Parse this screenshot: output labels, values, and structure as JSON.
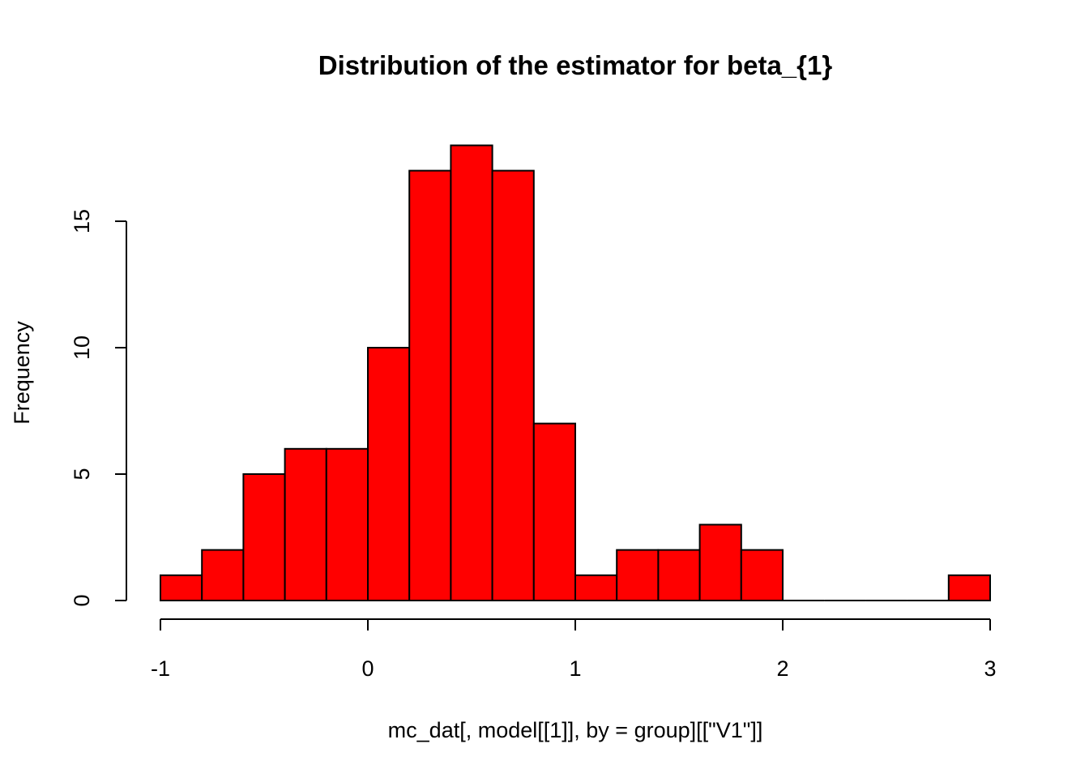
{
  "chart_data": {
    "type": "bar",
    "subtype": "histogram",
    "title": "Distribution of the estimator for beta_{1}",
    "xlabel": "mc_dat[, model[[1]], by = group][[\"V1\"]]",
    "ylabel": "Frequency",
    "bar_color": "#ff0000",
    "bin_width": 0.2,
    "bins": [
      {
        "start": -1.0,
        "end": -0.8,
        "count": 1
      },
      {
        "start": -0.8,
        "end": -0.6,
        "count": 2
      },
      {
        "start": -0.6,
        "end": -0.4,
        "count": 5
      },
      {
        "start": -0.4,
        "end": -0.2,
        "count": 6
      },
      {
        "start": -0.2,
        "end": 0.0,
        "count": 6
      },
      {
        "start": 0.0,
        "end": 0.2,
        "count": 10
      },
      {
        "start": 0.2,
        "end": 0.4,
        "count": 17
      },
      {
        "start": 0.4,
        "end": 0.6,
        "count": 18
      },
      {
        "start": 0.6,
        "end": 0.8,
        "count": 17
      },
      {
        "start": 0.8,
        "end": 1.0,
        "count": 7
      },
      {
        "start": 1.0,
        "end": 1.2,
        "count": 1
      },
      {
        "start": 1.2,
        "end": 1.4,
        "count": 2
      },
      {
        "start": 1.4,
        "end": 1.6,
        "count": 2
      },
      {
        "start": 1.6,
        "end": 1.8,
        "count": 3
      },
      {
        "start": 1.8,
        "end": 2.0,
        "count": 2
      },
      {
        "start": 2.0,
        "end": 2.2,
        "count": 0
      },
      {
        "start": 2.2,
        "end": 2.4,
        "count": 0
      },
      {
        "start": 2.4,
        "end": 2.6,
        "count": 0
      },
      {
        "start": 2.6,
        "end": 2.8,
        "count": 0
      },
      {
        "start": 2.8,
        "end": 3.0,
        "count": 1
      }
    ],
    "xlim": [
      -1,
      3
    ],
    "ylim": [
      0,
      18
    ],
    "x_ticks": [
      -1,
      0,
      1,
      2,
      3
    ],
    "y_ticks": [
      0,
      5,
      10,
      15
    ],
    "grid": false
  }
}
